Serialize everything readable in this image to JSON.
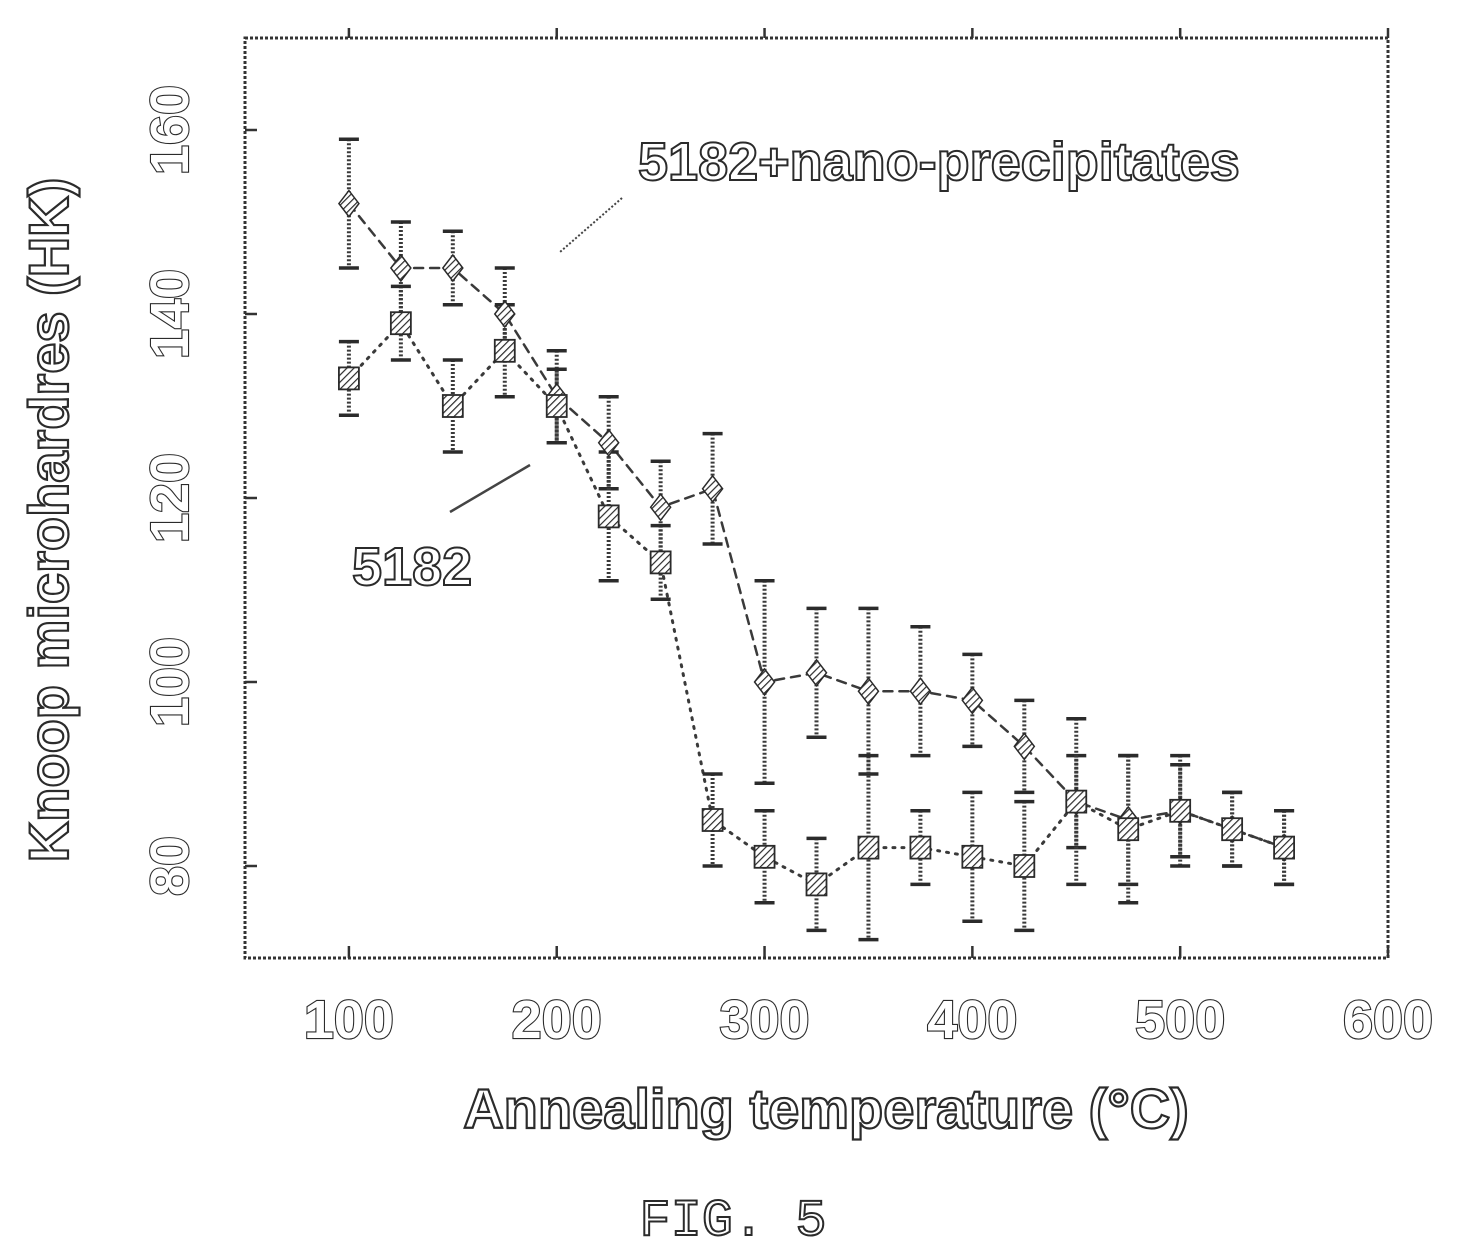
{
  "figure_caption": "FIG. 5",
  "chart_data": {
    "type": "scatter",
    "xlabel": "Annealing temperature (°C)",
    "ylabel": "Knoop microhardres (HK)",
    "xlim": [
      50,
      600
    ],
    "ylim": [
      70,
      170
    ],
    "x_ticks": [
      100,
      200,
      300,
      400,
      500,
      600
    ],
    "y_ticks": [
      80,
      100,
      120,
      140,
      160
    ],
    "grid": false,
    "annotations": [
      {
        "text": "5182+nano-precipitates",
        "series": "5182+nano-precipitates"
      },
      {
        "text": "5182",
        "series": "5182"
      }
    ],
    "series": [
      {
        "name": "5182+nano-precipitates",
        "line_style": "dashed",
        "points": [
          {
            "x": 100,
            "y": 152,
            "err": 7
          },
          {
            "x": 125,
            "y": 145,
            "err": 5
          },
          {
            "x": 150,
            "y": 145,
            "err": 4
          },
          {
            "x": 175,
            "y": 140,
            "err": 5
          },
          {
            "x": 200,
            "y": 131,
            "err": 5
          },
          {
            "x": 225,
            "y": 126,
            "err": 5
          },
          {
            "x": 250,
            "y": 119,
            "err": 5
          },
          {
            "x": 275,
            "y": 121,
            "err": 6
          },
          {
            "x": 300,
            "y": 100,
            "err": 11
          },
          {
            "x": 325,
            "y": 101,
            "err": 7
          },
          {
            "x": 350,
            "y": 99,
            "err": 9
          },
          {
            "x": 375,
            "y": 99,
            "err": 7
          },
          {
            "x": 400,
            "y": 98,
            "err": 5
          },
          {
            "x": 425,
            "y": 93,
            "err": 5
          },
          {
            "x": 450,
            "y": 87,
            "err": 5
          },
          {
            "x": 475,
            "y": 85,
            "err": 7
          },
          {
            "x": 500,
            "y": 86,
            "err": 6
          },
          {
            "x": 525,
            "y": 84,
            "err": 4
          },
          {
            "x": 550,
            "y": 82,
            "err": 4
          }
        ]
      },
      {
        "name": "5182",
        "line_style": "dotted",
        "points": [
          {
            "x": 100,
            "y": 133,
            "err": 4
          },
          {
            "x": 125,
            "y": 139,
            "err": 4
          },
          {
            "x": 150,
            "y": 130,
            "err": 5
          },
          {
            "x": 175,
            "y": 136,
            "err": 5
          },
          {
            "x": 200,
            "y": 130,
            "err": 4
          },
          {
            "x": 225,
            "y": 118,
            "err": 7
          },
          {
            "x": 250,
            "y": 113,
            "err": 4
          },
          {
            "x": 275,
            "y": 85,
            "err": 5
          },
          {
            "x": 300,
            "y": 81,
            "err": 5
          },
          {
            "x": 325,
            "y": 78,
            "err": 5
          },
          {
            "x": 350,
            "y": 82,
            "err": 10
          },
          {
            "x": 375,
            "y": 82,
            "err": 4
          },
          {
            "x": 400,
            "y": 81,
            "err": 7
          },
          {
            "x": 425,
            "y": 80,
            "err": 7
          },
          {
            "x": 450,
            "y": 87,
            "err": 9
          },
          {
            "x": 475,
            "y": 84,
            "err": 8
          },
          {
            "x": 500,
            "y": 86,
            "err": 5
          },
          {
            "x": 525,
            "y": 84,
            "err": 4
          },
          {
            "x": 550,
            "y": 82,
            "err": 4
          }
        ]
      }
    ]
  }
}
